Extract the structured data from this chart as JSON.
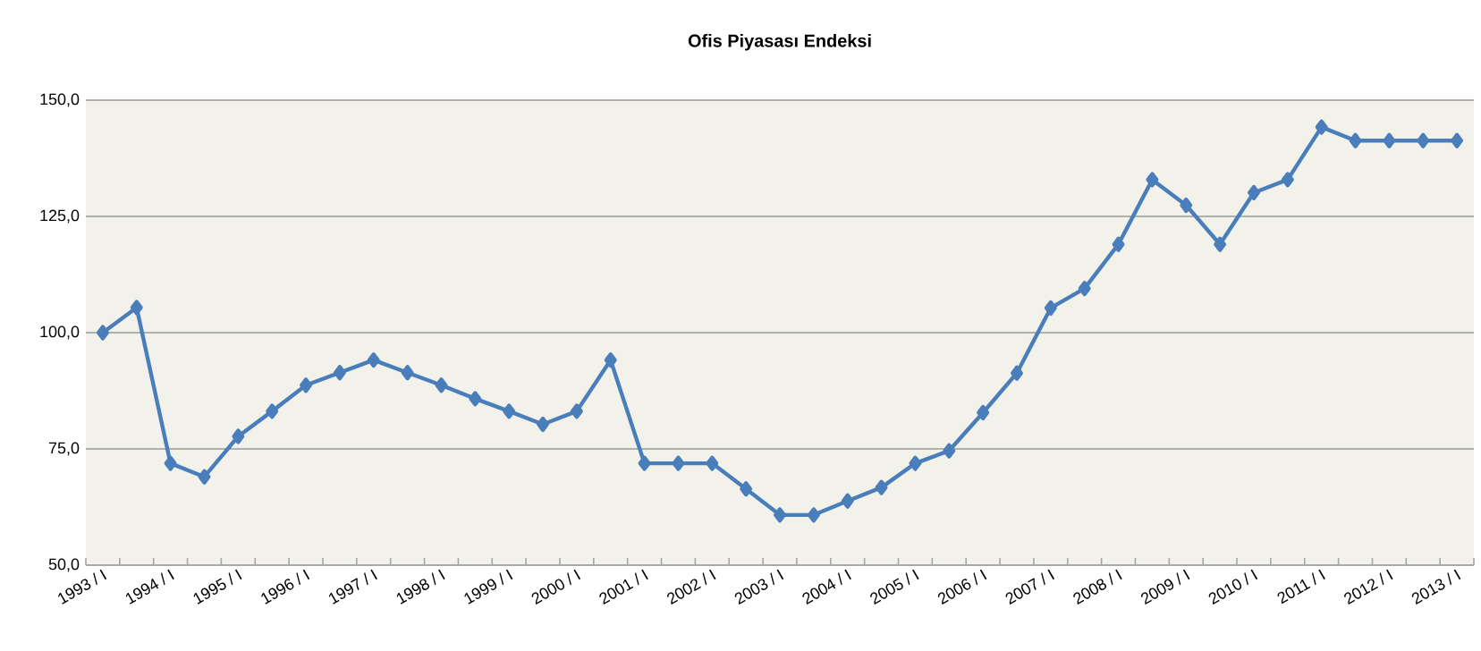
{
  "chart_data": {
    "type": "line",
    "title": "Ofis Piyasası Endeksi",
    "categories": [
      "1993 / I",
      null,
      "1994 / I",
      null,
      "1995 / I",
      null,
      "1996 / I",
      null,
      "1997 / I",
      null,
      "1998 / I",
      null,
      "1999 / I",
      null,
      "2000 / I",
      null,
      "2001 / I",
      null,
      "2002 / I",
      null,
      "2003 / I",
      null,
      "2004 / I",
      null,
      "2005 / I",
      null,
      "2006 / I",
      null,
      "2007 / I",
      null,
      "2008 / I",
      null,
      "2009 / I",
      null,
      "2010 / I",
      null,
      "2011 / I",
      null,
      "2012 / I",
      null,
      "2013 / I"
    ],
    "series": [
      {
        "color": "#4a7ebb",
        "values": [
          100,
          105.4,
          71.9,
          69.0,
          77.7,
          83.1,
          88.7,
          91.4,
          94.1,
          91.4,
          88.7,
          85.8,
          83.1,
          80.3,
          83.1,
          94.1,
          71.9,
          71.9,
          71.9,
          66.4,
          60.8,
          60.8,
          63.8,
          66.7,
          71.9,
          74.6,
          82.8,
          91.3,
          105.3,
          109.5,
          119.0,
          132.9,
          127.4,
          119.0,
          130.1,
          132.9,
          144.2,
          141.3,
          141.3,
          141.3,
          141.3
        ]
      }
    ],
    "ylim": [
      50,
      150
    ],
    "yticks": [
      {
        "value": 50,
        "label": "50,0"
      },
      {
        "value": 75,
        "label": "75,0"
      },
      {
        "value": 100,
        "label": "100,0"
      },
      {
        "value": 125,
        "label": "125,0"
      },
      {
        "value": 150,
        "label": "150,0"
      }
    ],
    "grid": "y",
    "marker": "diamond",
    "line_style": "solid"
  }
}
